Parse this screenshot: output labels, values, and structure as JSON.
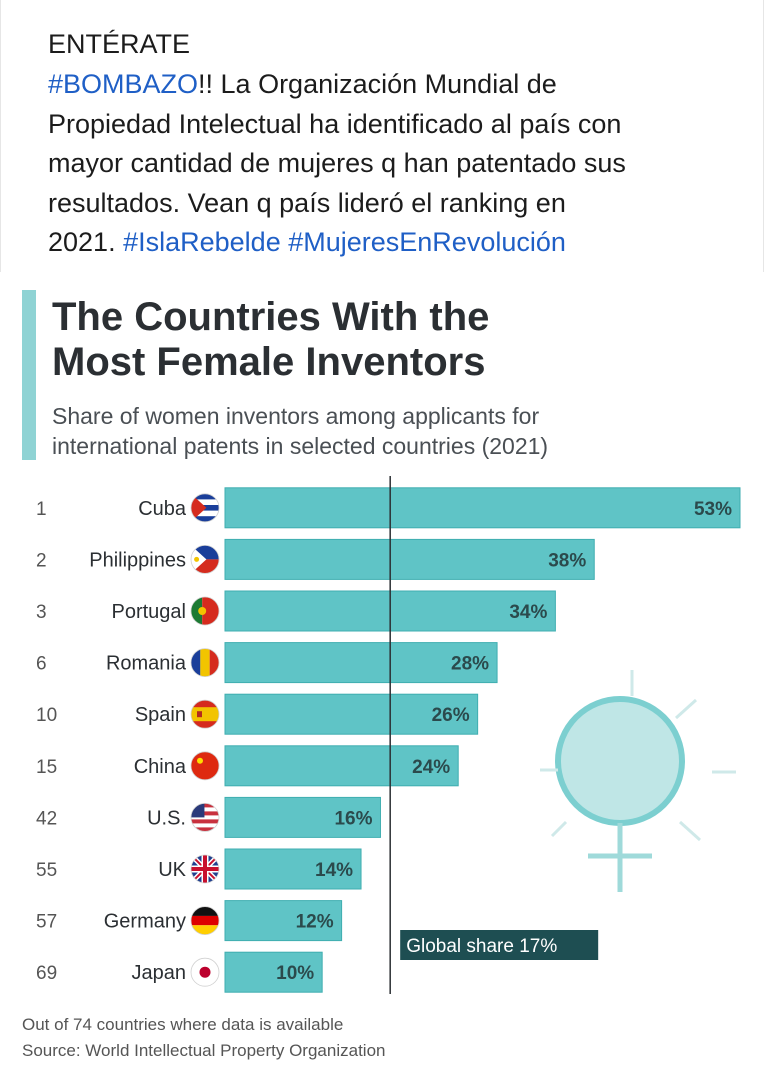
{
  "post": {
    "line1": "ENTÉRATE",
    "hashtag_bombazo": "#BOMBAZO",
    "line2_rest": "!! La Organización Mundial de",
    "line3": "Propiedad Intelectual ha identificado al país con",
    "line4": "mayor cantidad de mujeres q han patentado sus",
    "line5": "resultados. Vean q país lideró el ranking en",
    "line6_start": "2021.",
    "hashtag_isla": "#IslaRebelde",
    "hashtag_mujeres": "#MujeresEnRevolución"
  },
  "colors": {
    "bar": "#5fc4c6",
    "bar_edge": "#3faeb0",
    "accent": "#8fd3d4",
    "hashtag": "#1f5fc6",
    "global_label_bg": "#1e4e52",
    "title": "#2b2f33"
  },
  "chart_data": {
    "type": "bar",
    "orientation": "horizontal",
    "title_line1": "The Countries With the",
    "title_line2": "Most Female Inventors",
    "subtitle_line1": "Share of women inventors among applicants for",
    "subtitle_line2": "international patents in selected countries (2021)",
    "categories": [
      "Cuba",
      "Philippines",
      "Portugal",
      "Romania",
      "Spain",
      "China",
      "U.S.",
      "UK",
      "Germany",
      "Japan"
    ],
    "ranks": [
      "1",
      "2",
      "3",
      "6",
      "10",
      "15",
      "42",
      "55",
      "57",
      "69"
    ],
    "values": [
      53,
      38,
      34,
      28,
      26,
      24,
      16,
      14,
      12,
      10
    ],
    "value_labels": [
      "53%",
      "38%",
      "34%",
      "28%",
      "26%",
      "24%",
      "16%",
      "14%",
      "12%",
      "10%"
    ],
    "flag_icons": [
      "cuba-flag-icon",
      "philippines-flag-icon",
      "portugal-flag-icon",
      "romania-flag-icon",
      "spain-flag-icon",
      "china-flag-icon",
      "us-flag-icon",
      "uk-flag-icon",
      "germany-flag-icon",
      "japan-flag-icon"
    ],
    "reference_line": {
      "value": 17,
      "label": "Global share 17%"
    },
    "xlim": [
      0,
      53
    ]
  },
  "footer": {
    "note": "Out of 74 countries where data is available",
    "source": "Source: World Intellectual Property Organization"
  }
}
